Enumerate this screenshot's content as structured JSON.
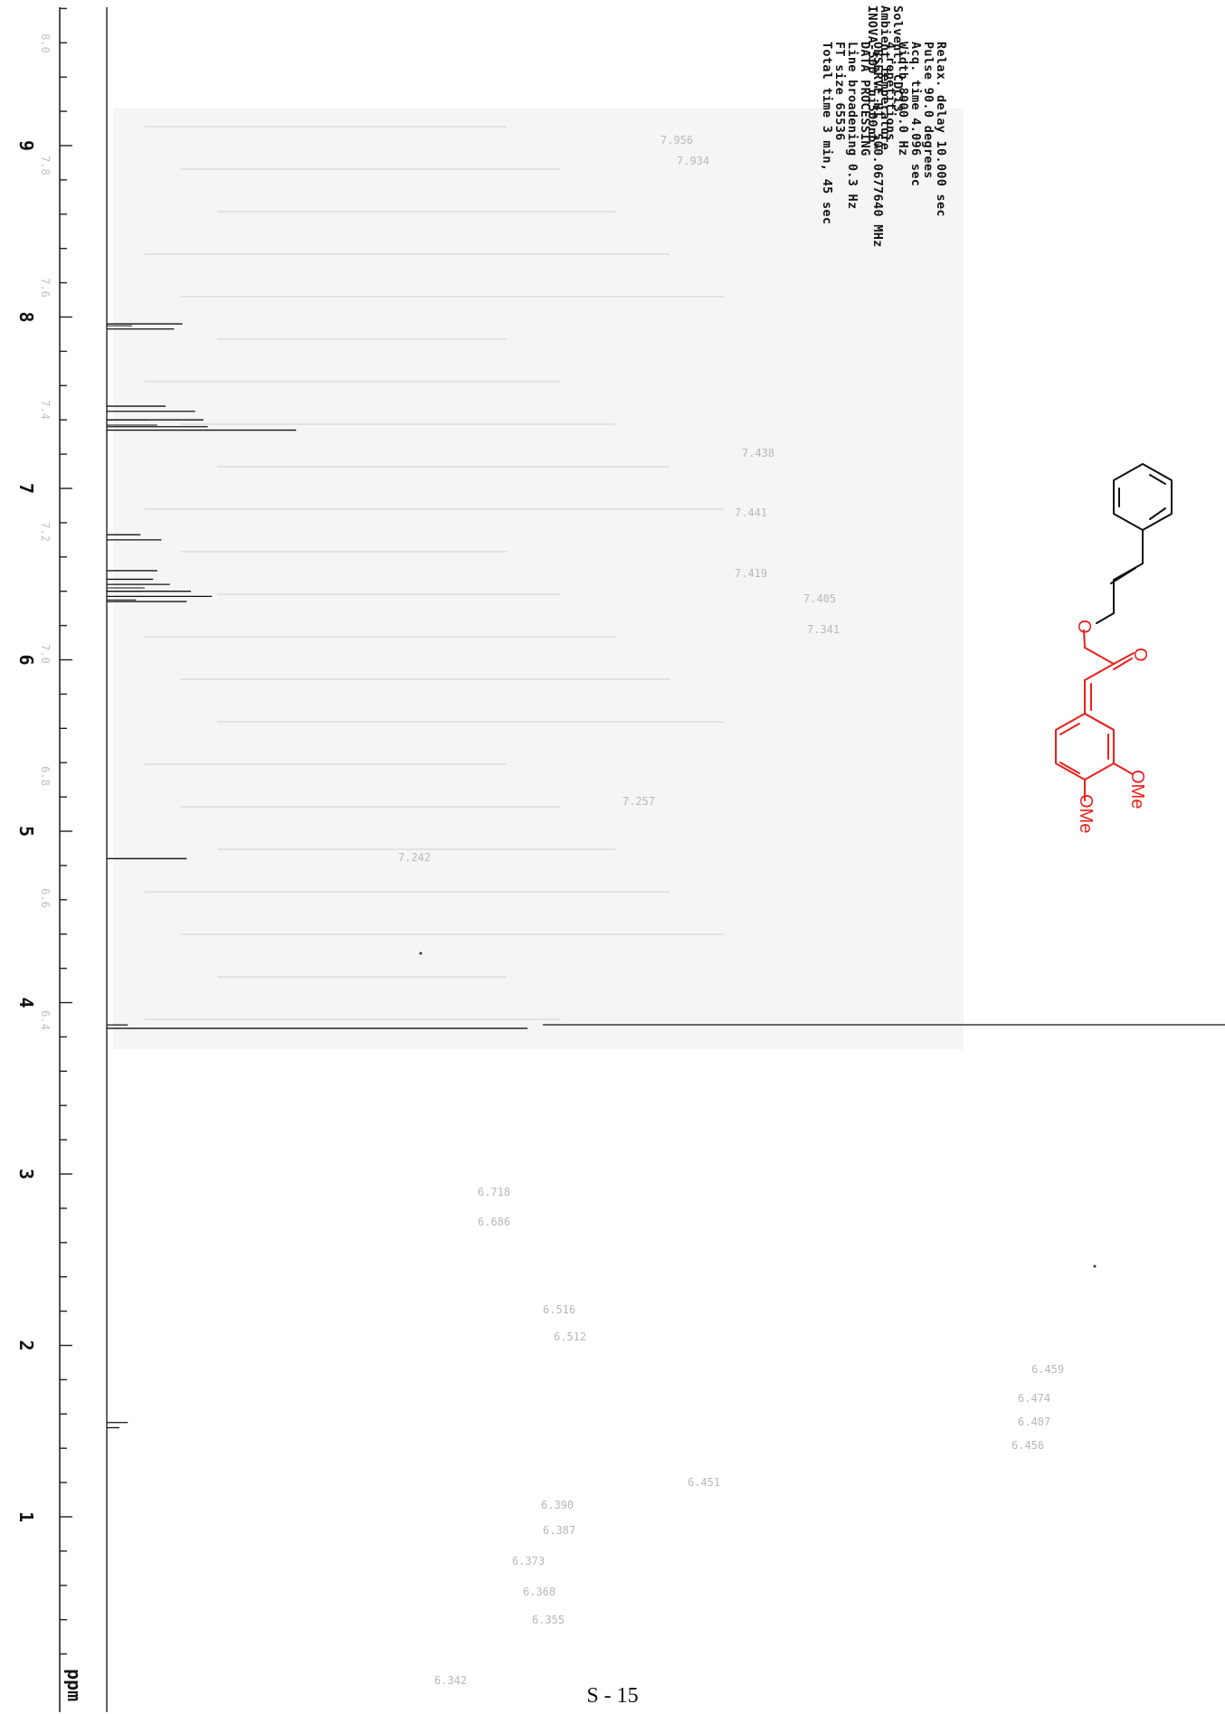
{
  "page_number": "S - 15",
  "spectrum": {
    "unit_label": "ppm",
    "axis_ticks": [
      "9",
      "8",
      "7",
      "6",
      "5",
      "4",
      "3",
      "2",
      "1"
    ],
    "inset_ticks": [
      "8.0",
      "7.8",
      "7.6",
      "7.4",
      "7.2",
      "7.0",
      "6.8",
      "6.6",
      "6.4"
    ],
    "parameters": [
      "Solvent: CDCl3",
      "Ambient temperature",
      "INOVA-500  \"ui500nb\"",
      "",
      "Relax. delay 10.000 sec",
      "Pulse 90.0 degrees",
      "Acq. time 4.096 sec",
      "Width 8000.0 Hz",
      "4 repetitions",
      "OBSERVE   H1, 500.0677640 MHz",
      "DATA PROCESSING",
      "  Line broadening 0.3 Hz",
      "FT size 65536",
      "Total time 3 min, 45 sec"
    ],
    "peak_labels_top": [
      "7.956",
      "7.934"
    ],
    "peak_labels_middle": [
      "7.438",
      "7.441",
      "7.419",
      "7.405",
      "7.341",
      "7.257",
      "7.242"
    ],
    "peak_labels_lower": [
      "6.718",
      "6.686",
      "6.516",
      "6.512",
      "6.459",
      "6.474",
      "6.487",
      "6.456",
      "6.451",
      "6.390",
      "6.387",
      "6.373",
      "6.368",
      "6.355",
      "6.342"
    ],
    "colors": {
      "trace": "#111111",
      "structure_red": "#e8201c",
      "structure_black": "#111111"
    }
  },
  "chart_data": {
    "type": "line",
    "title": "",
    "xlabel": "ppm",
    "ylabel": "",
    "x_range": [
      0.3,
      9.8
    ],
    "x_axis_reversed": true,
    "grid": false,
    "peaks": [
      {
        "ppm": 7.96,
        "relative_height": 0.18
      },
      {
        "ppm": 7.93,
        "relative_height": 0.16
      },
      {
        "ppm": 7.48,
        "relative_height": 0.14
      },
      {
        "ppm": 7.45,
        "relative_height": 0.21
      },
      {
        "ppm": 7.4,
        "relative_height": 0.23
      },
      {
        "ppm": 7.36,
        "relative_height": 0.24
      },
      {
        "ppm": 7.34,
        "relative_height": 0.45
      },
      {
        "ppm": 6.73,
        "relative_height": 0.08
      },
      {
        "ppm": 6.7,
        "relative_height": 0.13
      },
      {
        "ppm": 6.52,
        "relative_height": 0.12
      },
      {
        "ppm": 6.47,
        "relative_height": 0.11
      },
      {
        "ppm": 6.44,
        "relative_height": 0.15
      },
      {
        "ppm": 6.4,
        "relative_height": 0.2
      },
      {
        "ppm": 6.37,
        "relative_height": 0.25
      },
      {
        "ppm": 6.34,
        "relative_height": 0.19
      },
      {
        "ppm": 4.84,
        "relative_height": 0.19
      },
      {
        "ppm": 3.87,
        "relative_height": 0.05
      },
      {
        "ppm": 3.85,
        "relative_height": 1.0
      },
      {
        "ppm": 1.55,
        "relative_height": 0.05
      },
      {
        "ppm": 1.52,
        "relative_height": 0.03
      }
    ]
  },
  "structure": {
    "atom_labels": [
      "O",
      "O",
      "OMe",
      "OMe"
    ]
  }
}
